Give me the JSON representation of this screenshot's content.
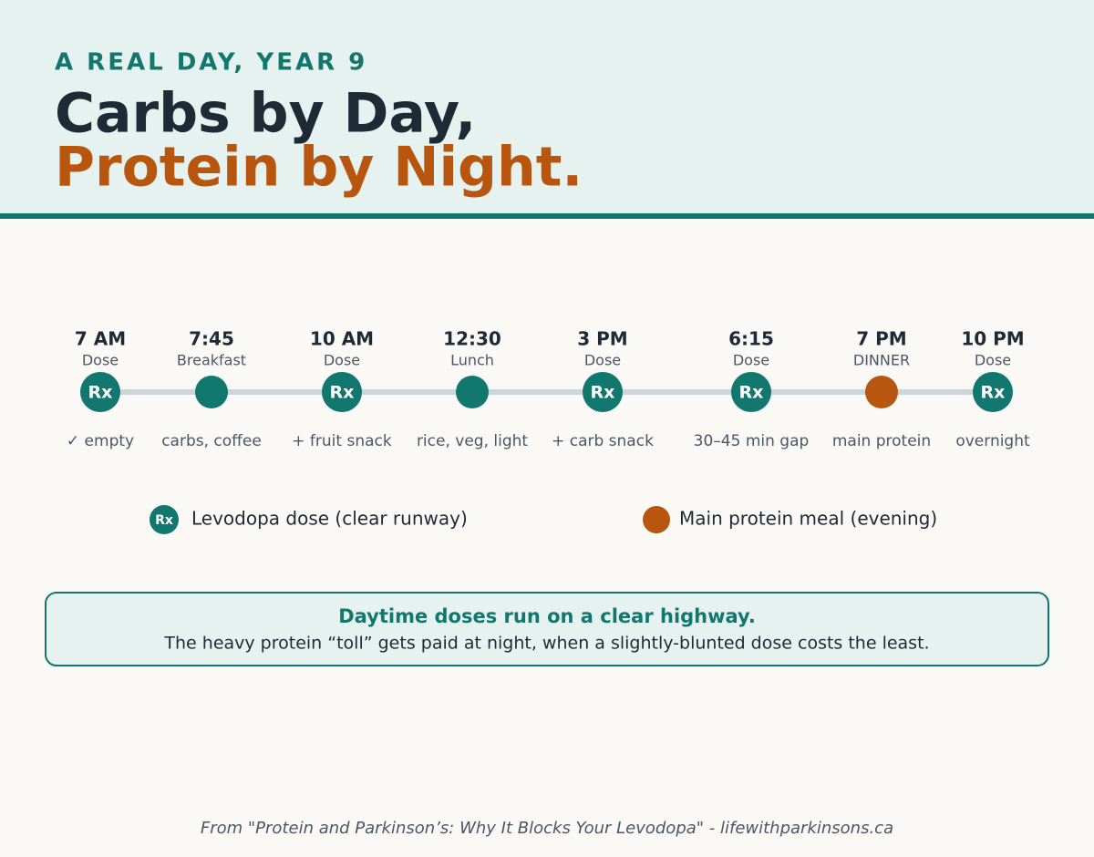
{
  "header": {
    "kicker": "A REAL DAY, YEAR 9",
    "title_line1": "Carbs by Day,",
    "title_line2": "Protein by Night."
  },
  "timeline": {
    "events": [
      {
        "time": "7 AM",
        "label": "Dose",
        "badge": "Rx",
        "note": "✓ empty",
        "color": "#12776e"
      },
      {
        "time": "7:45",
        "label": "Breakfast",
        "note": "carbs, coffee",
        "color": "#12776e"
      },
      {
        "time": "10 AM",
        "label": "Dose",
        "badge": "Rx",
        "note": "+ fruit snack",
        "color": "#12776e"
      },
      {
        "time": "12:30",
        "label": "Lunch",
        "note": "rice, veg, light",
        "color": "#12776e"
      },
      {
        "time": "3 PM",
        "label": "Dose",
        "badge": "Rx",
        "note": "+ carb snack",
        "color": "#12776e"
      },
      {
        "time": "6:15",
        "label": "Dose",
        "badge": "Rx",
        "note": "30–45 min gap",
        "color": "#12776e"
      },
      {
        "time": "7 PM",
        "label": "DINNER",
        "note": "main protein",
        "color": "#b8560f"
      },
      {
        "time": "10 PM",
        "label": "Dose",
        "badge": "Rx",
        "note": "overnight",
        "color": "#12776e"
      }
    ]
  },
  "legend": {
    "items": [
      {
        "badge": "Rx",
        "label": "Levodopa dose (clear runway)",
        "color": "#12776e"
      },
      {
        "label": "Main protein meal (evening)",
        "color": "#b8560f"
      }
    ]
  },
  "callout": {
    "headline": "Daytime doses run on a clear highway.",
    "body": "The heavy protein “toll” gets paid at night, when a slightly-blunted dose costs the least."
  },
  "footer": {
    "source": "From \"Protein and Parkinson’s: Why It Blocks Your Levodopa\" - lifewithparkinsons.ca"
  }
}
